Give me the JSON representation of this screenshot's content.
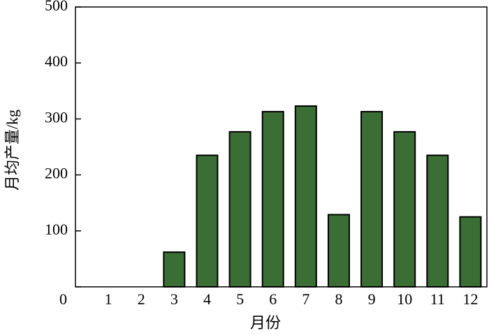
{
  "chart_data": {
    "type": "bar",
    "xlabel": "月份",
    "ylabel": "月均产量/kg",
    "categories": [
      "1",
      "2",
      "3",
      "4",
      "5",
      "6",
      "7",
      "8",
      "9",
      "10",
      "11",
      "12"
    ],
    "values": [
      0,
      0,
      62,
      235,
      277,
      313,
      323,
      129,
      313,
      277,
      235,
      125
    ],
    "color": "#3b6e35",
    "ylim": [
      0,
      500
    ],
    "yticks": [
      0,
      100,
      200,
      300,
      400,
      500
    ],
    "grid": false
  }
}
